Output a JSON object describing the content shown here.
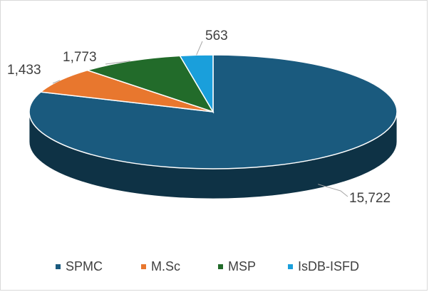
{
  "chart_data": {
    "type": "pie",
    "style": "3d",
    "categories": [
      "SPMC",
      "M.Sc",
      "MSP",
      "IsDB-ISFD"
    ],
    "values": [
      15722,
      1433,
      1773,
      563
    ],
    "data_labels": [
      "15,722",
      "1,433",
      "1,773",
      "563"
    ],
    "colors": {
      "SPMC": "#1a5a7e",
      "M.Sc": "#e8772e",
      "MSP": "#226b2a",
      "IsDB-ISFD": "#1a9fdb"
    },
    "legend_position": "bottom"
  }
}
